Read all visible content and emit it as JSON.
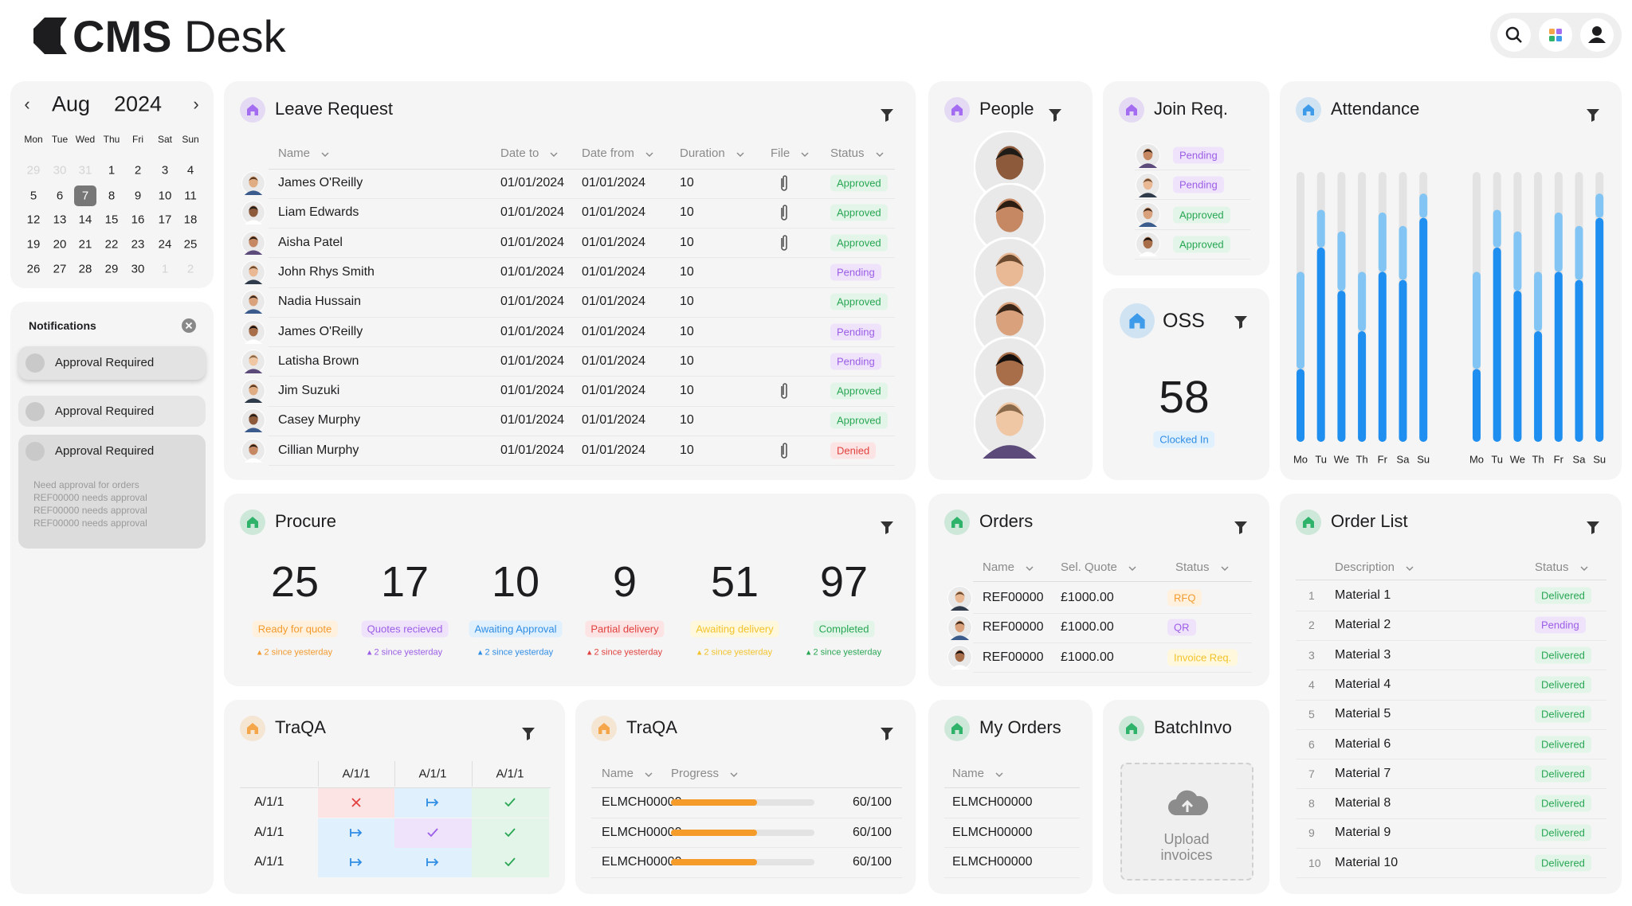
{
  "header": {
    "logo_bold": "CMS",
    "logo_light": "Desk"
  },
  "calendar": {
    "month": "Aug",
    "year": "2024",
    "weekdays": [
      "Mon",
      "Tue",
      "Wed",
      "Thu",
      "Fri",
      "Sat",
      "Sun"
    ],
    "days": [
      {
        "day": 29,
        "muted": true
      },
      {
        "day": 30,
        "muted": true
      },
      {
        "day": 31,
        "muted": true
      },
      {
        "day": 1
      },
      {
        "day": 2
      },
      {
        "day": 3
      },
      {
        "day": 4
      },
      {
        "day": 5
      },
      {
        "day": 6
      },
      {
        "day": 7,
        "selected": true
      },
      {
        "day": 8
      },
      {
        "day": 9
      },
      {
        "day": 10
      },
      {
        "day": 11
      },
      {
        "day": 12
      },
      {
        "day": 13
      },
      {
        "day": 14
      },
      {
        "day": 15
      },
      {
        "day": 16
      },
      {
        "day": 17
      },
      {
        "day": 18
      },
      {
        "day": 19
      },
      {
        "day": 20
      },
      {
        "day": 21
      },
      {
        "day": 22
      },
      {
        "day": 23
      },
      {
        "day": 24
      },
      {
        "day": 25
      },
      {
        "day": 26
      },
      {
        "day": 27
      },
      {
        "day": 28
      },
      {
        "day": 29
      },
      {
        "day": 30
      },
      {
        "day": 1,
        "muted": true
      },
      {
        "day": 2,
        "muted": true
      }
    ]
  },
  "notifications": {
    "title": "Notifications",
    "items": [
      {
        "title": "Approval Required"
      },
      {
        "title": "Approval Required"
      },
      {
        "title": "Approval Required",
        "details": [
          "Need approval for orders",
          "REF00000 needs approval",
          "REF00000 needs approval",
          "REF00000 needs approval"
        ]
      }
    ]
  },
  "leave_request": {
    "title": "Leave Request",
    "icon_color": "#a46cf0",
    "columns": [
      "Name",
      "Date to",
      "Date from",
      "Duration",
      "File",
      "Status"
    ],
    "rows": [
      {
        "name": "James O'Reilly",
        "date_to": "01/01/2024",
        "date_from": "01/01/2024",
        "duration": 10,
        "file": true,
        "status": "Approved",
        "tone": "green"
      },
      {
        "name": "Liam Edwards",
        "date_to": "01/01/2024",
        "date_from": "01/01/2024",
        "duration": 10,
        "file": true,
        "status": "Approved",
        "tone": "green"
      },
      {
        "name": "Aisha Patel",
        "date_to": "01/01/2024",
        "date_from": "01/01/2024",
        "duration": 10,
        "file": true,
        "status": "Approved",
        "tone": "green"
      },
      {
        "name": "John Rhys Smith",
        "date_to": "01/01/2024",
        "date_from": "01/01/2024",
        "duration": 10,
        "file": false,
        "status": "Pending",
        "tone": "purple"
      },
      {
        "name": "Nadia Hussain",
        "date_to": "01/01/2024",
        "date_from": "01/01/2024",
        "duration": 10,
        "file": false,
        "status": "Approved",
        "tone": "green"
      },
      {
        "name": "James O'Reilly",
        "date_to": "01/01/2024",
        "date_from": "01/01/2024",
        "duration": 10,
        "file": false,
        "status": "Pending",
        "tone": "purple"
      },
      {
        "name": "Latisha Brown",
        "date_to": "01/01/2024",
        "date_from": "01/01/2024",
        "duration": 10,
        "file": false,
        "status": "Pending",
        "tone": "purple"
      },
      {
        "name": "Jim Suzuki",
        "date_to": "01/01/2024",
        "date_from": "01/01/2024",
        "duration": 10,
        "file": true,
        "status": "Approved",
        "tone": "green"
      },
      {
        "name": "Casey Murphy",
        "date_to": "01/01/2024",
        "date_from": "01/01/2024",
        "duration": 10,
        "file": false,
        "status": "Approved",
        "tone": "green"
      },
      {
        "name": "Cillian Murphy",
        "date_to": "01/01/2024",
        "date_from": "01/01/2024",
        "duration": 10,
        "file": true,
        "status": "Denied",
        "tone": "red"
      }
    ]
  },
  "people": {
    "title": "People",
    "icon_color": "#a46cf0"
  },
  "join_req": {
    "title": "Join Req.",
    "icon_color": "#a46cf0",
    "rows": [
      {
        "status": "Pending",
        "tone": "purple"
      },
      {
        "status": "Pending",
        "tone": "purple"
      },
      {
        "status": "Approved",
        "tone": "green"
      },
      {
        "status": "Approved",
        "tone": "green"
      }
    ]
  },
  "oss": {
    "title": "OSS",
    "icon_color": "#3d9be9",
    "value": 58,
    "label": "Clocked In"
  },
  "attendance": {
    "title": "Attendance",
    "icon_color": "#3d9be9",
    "ylim": [
      0,
      100
    ],
    "colors": {
      "present": "#1e8ff0",
      "late": "#82c5f4",
      "track": "#e3e3e3"
    },
    "groups": [
      {
        "days": [
          "Mo",
          "Tu",
          "We",
          "Th",
          "Fr",
          "Sa",
          "Su"
        ],
        "present": [
          27,
          72,
          56,
          41,
          63,
          60,
          83
        ],
        "late": [
          36,
          14,
          22,
          22,
          22,
          20,
          9
        ]
      },
      {
        "days": [
          "Mo",
          "Tu",
          "We",
          "Th",
          "Fr",
          "Sa",
          "Su"
        ],
        "present": [
          27,
          72,
          56,
          41,
          63,
          60,
          83
        ],
        "late": [
          36,
          14,
          22,
          22,
          22,
          20,
          9
        ]
      }
    ]
  },
  "procure": {
    "title": "Procure",
    "icon_color": "#2fb36a",
    "stats": [
      {
        "value": 25,
        "label": "Ready for quote",
        "change": "2 since yesterday",
        "tone": "orange"
      },
      {
        "value": 17,
        "label": "Quotes recieved",
        "change": "2 since yesterday",
        "tone": "purple"
      },
      {
        "value": 10,
        "label": "Awaiting Approval",
        "change": "2 since yesterday",
        "tone": "blue"
      },
      {
        "value": 9,
        "label": "Partial delivery",
        "change": "2 since yesterday",
        "tone": "red"
      },
      {
        "value": 51,
        "label": "Awaiting delivery",
        "change": "2 since yesterday",
        "tone": "yellow"
      },
      {
        "value": 97,
        "label": "Completed",
        "change": "2 since yesterday",
        "tone": "green"
      }
    ]
  },
  "orders": {
    "title": "Orders",
    "icon_color": "#2fb36a",
    "columns": [
      "Name",
      "Sel. Quote",
      "Status"
    ],
    "rows": [
      {
        "name": "REF00000",
        "quote": "£1000.00",
        "status": "RFQ",
        "tone": "orange"
      },
      {
        "name": "REF00000",
        "quote": "£1000.00",
        "status": "QR",
        "tone": "purple"
      },
      {
        "name": "REF00000",
        "quote": "£1000.00",
        "status": "Invoice Req.",
        "tone": "yellow"
      }
    ]
  },
  "order_list": {
    "title": "Order List",
    "icon_color": "#2fb36a",
    "columns": [
      "Description",
      "Status"
    ],
    "rows": [
      {
        "no": 1,
        "description": "Material 1",
        "status": "Delivered",
        "tone": "green"
      },
      {
        "no": 2,
        "description": "Material 2",
        "status": "Pending",
        "tone": "purple"
      },
      {
        "no": 3,
        "description": "Material 3",
        "status": "Delivered",
        "tone": "green"
      },
      {
        "no": 4,
        "description": "Material 4",
        "status": "Delivered",
        "tone": "green"
      },
      {
        "no": 5,
        "description": "Material 5",
        "status": "Delivered",
        "tone": "green"
      },
      {
        "no": 6,
        "description": "Material 6",
        "status": "Delivered",
        "tone": "green"
      },
      {
        "no": 7,
        "description": "Material 7",
        "status": "Delivered",
        "tone": "green"
      },
      {
        "no": 8,
        "description": "Material 8",
        "status": "Delivered",
        "tone": "green"
      },
      {
        "no": 9,
        "description": "Material 9",
        "status": "Delivered",
        "tone": "green"
      },
      {
        "no": 10,
        "description": "Material 10",
        "status": "Delivered",
        "tone": "green"
      }
    ]
  },
  "traqa_matrix": {
    "title": "TraQA",
    "icon_color": "#f5a64a",
    "columns": [
      "A/1/1",
      "A/1/1",
      "A/1/1"
    ],
    "rows": [
      "A/1/1",
      "A/1/1",
      "A/1/1"
    ]
  },
  "traqa_progress": {
    "title": "TraQA",
    "icon_color": "#f5a64a",
    "columns": [
      "Name",
      "Progress"
    ],
    "progress_max": 100,
    "rows": [
      {
        "name": "ELMCH00000",
        "progress": 60,
        "progress_label": "60/100"
      },
      {
        "name": "ELMCH00000",
        "progress": 60,
        "progress_label": "60/100"
      },
      {
        "name": "ELMCH00000",
        "progress": 60,
        "progress_label": "60/100"
      }
    ]
  },
  "my_orders": {
    "title": "My Orders",
    "icon_color": "#2fb36a",
    "columns": [
      "Name"
    ],
    "rows": [
      "ELMCH00000",
      "ELMCH00000",
      "ELMCH00000"
    ]
  },
  "batch_invo": {
    "title": "BatchInvo",
    "icon_color": "#2fb36a",
    "upload": "Upload invoices"
  }
}
